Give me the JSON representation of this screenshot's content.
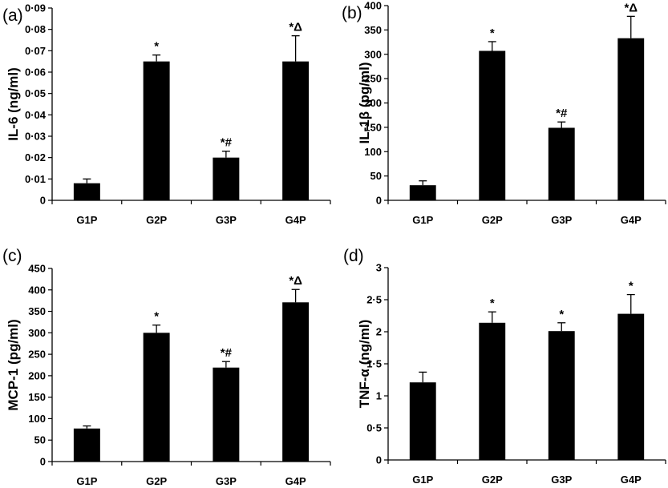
{
  "chart_data": [
    {
      "id": "a",
      "type": "bar",
      "panel_label": "(a)",
      "ylabel": "IL-6 (ng/ml)",
      "categories": [
        "G1P",
        "G2P",
        "G3P",
        "G4P"
      ],
      "values": [
        0.008,
        0.065,
        0.02,
        0.065
      ],
      "errors": [
        0.002,
        0.003,
        0.003,
        0.012
      ],
      "annotations": [
        "",
        "*",
        "*#",
        "*Δ"
      ],
      "ylim": [
        0,
        0.09
      ],
      "yticks": [
        0,
        0.01,
        0.02,
        0.03,
        0.04,
        0.05,
        0.06,
        0.07,
        0.08,
        0.09
      ],
      "ytick_labels": [
        "0",
        "0·01",
        "0·02",
        "0·03",
        "0·04",
        "0·05",
        "0·06",
        "0·07",
        "0·08",
        "0·09"
      ],
      "bar_color": "#000000"
    },
    {
      "id": "b",
      "type": "bar",
      "panel_label": "(b)",
      "ylabel": "IL-1β (pg/ml)",
      "categories": [
        "G1P",
        "G2P",
        "G3P",
        "G4P"
      ],
      "values": [
        31,
        307,
        149,
        333
      ],
      "errors": [
        9,
        19,
        12,
        45
      ],
      "annotations": [
        "",
        "*",
        "*#",
        "*Δ"
      ],
      "ylim": [
        0,
        400
      ],
      "yticks": [
        0,
        50,
        100,
        150,
        200,
        250,
        300,
        350,
        400
      ],
      "ytick_labels": [
        "0",
        "50",
        "100",
        "150",
        "200",
        "250",
        "300",
        "350",
        "400"
      ],
      "bar_color": "#000000"
    },
    {
      "id": "c",
      "type": "bar",
      "panel_label": "(c)",
      "ylabel": "MCP-1 (pg/ml)",
      "categories": [
        "G1P",
        "G2P",
        "G3P",
        "G4P"
      ],
      "values": [
        77,
        300,
        219,
        371
      ],
      "errors": [
        6,
        18,
        14,
        30
      ],
      "annotations": [
        "",
        "*",
        "*#",
        "*Δ"
      ],
      "ylim": [
        0,
        450
      ],
      "yticks": [
        0,
        50,
        100,
        150,
        200,
        250,
        300,
        350,
        400,
        450
      ],
      "ytick_labels": [
        "0",
        "50",
        "100",
        "150",
        "200",
        "250",
        "300",
        "350",
        "400",
        "450"
      ],
      "bar_color": "#000000"
    },
    {
      "id": "d",
      "type": "bar",
      "panel_label": "(d)",
      "ylabel": "TNF-α (ng/ml)",
      "categories": [
        "G1P",
        "G2P",
        "G3P",
        "G4P"
      ],
      "values": [
        1.21,
        2.14,
        2.01,
        2.28
      ],
      "errors": [
        0.16,
        0.17,
        0.13,
        0.3
      ],
      "annotations": [
        "",
        "*",
        "*",
        "*"
      ],
      "ylim": [
        0,
        3
      ],
      "yticks": [
        0,
        0.5,
        1,
        1.5,
        2,
        2.5,
        3
      ],
      "ytick_labels": [
        "0",
        "0·5",
        "1",
        "1·5",
        "2",
        "2·5",
        "3"
      ],
      "bar_color": "#000000"
    }
  ]
}
